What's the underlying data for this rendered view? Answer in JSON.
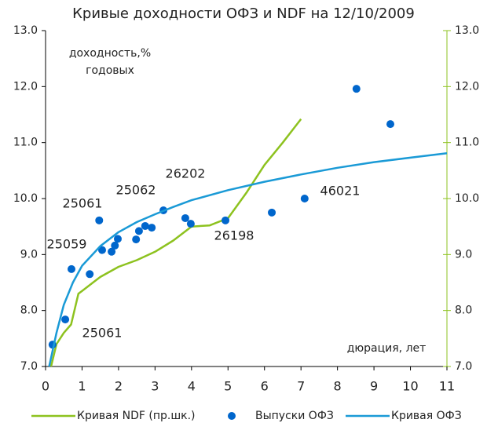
{
  "chart_data": {
    "type": "line",
    "title": "Кривые доходности ОФЗ и NDF на 12/10/2009",
    "y_label": [
      "доходность,%",
      "годовых"
    ],
    "x_label": "дюрация, лет",
    "annotations": [
      "25061",
      "25062",
      "26202",
      "46021",
      "25059",
      "26198",
      "25061"
    ],
    "xlim": [
      0,
      11
    ],
    "xticks": [
      0,
      1,
      2,
      3,
      4,
      5,
      6,
      7,
      8,
      9,
      10,
      11
    ],
    "ylim": [
      7,
      13
    ],
    "yticks": [
      {
        "value": 7,
        "label": "7.0"
      },
      {
        "value": 8,
        "label": "8.0"
      },
      {
        "value": 9,
        "label": "9.0"
      },
      {
        "value": 10,
        "label": "10.0"
      },
      {
        "value": 11,
        "label": "11.0"
      },
      {
        "value": 12,
        "label": "12.0"
      },
      {
        "value": 13,
        "label": "13.0"
      }
    ],
    "y2lim": [
      7,
      13
    ],
    "y2ticks": [
      {
        "value": 7,
        "label": "7.0"
      },
      {
        "value": 8,
        "label": "8.0"
      },
      {
        "value": 9,
        "label": "9.0"
      },
      {
        "value": 10,
        "label": "10.0"
      },
      {
        "value": 11,
        "label": "11.0"
      },
      {
        "value": 12,
        "label": "12.0"
      },
      {
        "value": 13,
        "label": "13.0"
      }
    ],
    "y2color": "#8dc21f",
    "grid": false,
    "legend": "bottom",
    "series": [
      {
        "name": "Кривая NDF (пр.шк.)",
        "type": "line",
        "axis": "y2",
        "color": "#8dc21f",
        "x": [
          0.15,
          0.3,
          0.5,
          0.7,
          0.9,
          1.0,
          1.3,
          1.5,
          2.0,
          2.5,
          3.0,
          3.5,
          4.0,
          4.5,
          5.0,
          5.5,
          6.0,
          6.5,
          7.0
        ],
        "values": [
          7.0,
          7.4,
          7.6,
          7.75,
          8.3,
          8.35,
          8.5,
          8.6,
          8.78,
          8.9,
          9.05,
          9.25,
          9.5,
          9.52,
          9.65,
          10.1,
          10.6,
          11.0,
          11.42
        ]
      },
      {
        "name": "Выпуски ОФЗ",
        "type": "scatter",
        "color": "#0066cc",
        "x": [
          0.19,
          0.54,
          0.71,
          1.21,
          1.47,
          1.55,
          1.81,
          1.9,
          1.98,
          2.48,
          2.56,
          2.73,
          2.91,
          3.23,
          3.83,
          3.98,
          4.93,
          6.2,
          7.1,
          8.52,
          9.45
        ],
        "values": [
          7.39,
          7.84,
          8.74,
          8.65,
          9.61,
          9.08,
          9.05,
          9.16,
          9.28,
          9.27,
          9.42,
          9.51,
          9.48,
          9.79,
          9.65,
          9.55,
          9.61,
          9.75,
          10.0,
          11.96,
          11.33
        ]
      },
      {
        "name": "Кривая ОФЗ",
        "type": "line",
        "color": "#1a9ad6",
        "x": [
          0.1,
          0.3,
          0.5,
          0.75,
          1,
          1.5,
          2,
          2.5,
          3,
          3.5,
          4,
          5,
          6,
          7,
          8,
          9,
          10,
          11
        ],
        "values": [
          7.0,
          7.6,
          8.1,
          8.5,
          8.8,
          9.15,
          9.4,
          9.58,
          9.72,
          9.85,
          9.97,
          10.15,
          10.3,
          10.43,
          10.55,
          10.65,
          10.73,
          10.81
        ]
      }
    ]
  }
}
